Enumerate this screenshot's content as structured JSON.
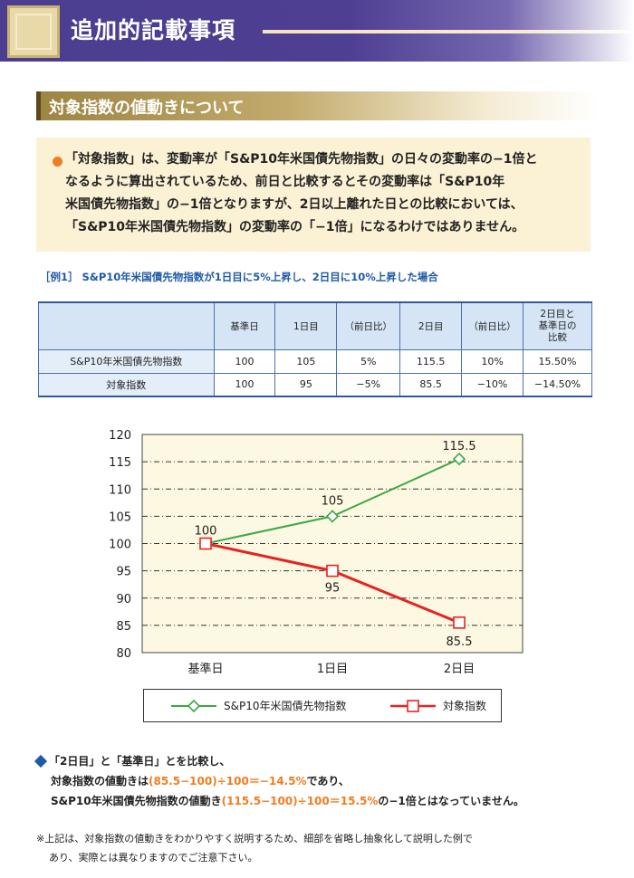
{
  "header": {
    "title": "追加的記載事項"
  },
  "section": {
    "title": "対象指数の値動きについて"
  },
  "summary": {
    "lines": [
      "「対象指数」は、変動率が「S&P10年米国債先物指数」の日々の変動率の−1倍と",
      "なるように算出されているため、前日と比較するとその変動率は「S&P10年",
      "米国債先物指数」の−1倍となりますが、2日以上離れた日との比較においては、",
      "「S&P10年米国債先物指数」の変動率の「−1倍」になるわけではありません。"
    ]
  },
  "example": {
    "title": "［例1］ S&P10年米国債先物指数が1日目に5%上昇し、2日目に10%上昇した場合"
  },
  "table": {
    "headers": [
      "",
      "基準日",
      "1日目",
      "（前日比）",
      "2日目",
      "（前日比）",
      "2日目と基準日の比較"
    ],
    "header_last_lines": [
      "2日目と",
      "基準日の",
      "比較"
    ],
    "rows": [
      [
        "S&P10年米国債先物指数",
        "100",
        "105",
        "5%",
        "115.5",
        "10%",
        "15.50%"
      ],
      [
        "対象指数",
        "100",
        "95",
        "−5%",
        "85.5",
        "−10%",
        "−14.50%"
      ]
    ]
  },
  "chart_data": {
    "type": "line",
    "categories": [
      "基準日",
      "1日目",
      "2日目"
    ],
    "series": [
      {
        "name": "S&P10年米国債先物指数",
        "values": [
          100,
          105,
          115.5
        ],
        "color": "#3aa845",
        "marker": "diamond"
      },
      {
        "name": "対象指数",
        "values": [
          100,
          95,
          85.5
        ],
        "color": "#e52421",
        "marker": "square"
      }
    ],
    "data_labels": [
      "100",
      "105",
      "115.5",
      "95",
      "85.5"
    ],
    "ylim": [
      80,
      120
    ],
    "yticks": [
      "120",
      "115",
      "110",
      "105",
      "100",
      "95",
      "90",
      "85",
      "80"
    ],
    "grid": true,
    "background": "#fdf8e1",
    "legend_position": "bottom"
  },
  "note": {
    "line1": "「2日目」と「基準日」とを比較し、",
    "line2_pre": "対象指数の値動きは",
    "line2_hl": "(85.5−100)÷100＝−14.5%",
    "line2_post": "であり、",
    "line3_pre": "S&P10年米国債先物指数の値動き",
    "line3_hl": "(115.5−100)÷100＝15.5%",
    "line3_post": "の−1倍とはなっていません。"
  },
  "footnote": {
    "line1": "※上記は、対象指数の値動きをわかりやすく説明するため、細部を省略し抽象化して説明した例で",
    "line2": "あり、実際とは異なりますのでご注意下さい。"
  },
  "colors": {
    "header": "#4b3d8f",
    "accent_orange": "#ef7d22",
    "accent_blue": "#1f5aa8",
    "green_series": "#3aa845",
    "red_series": "#e52421"
  }
}
